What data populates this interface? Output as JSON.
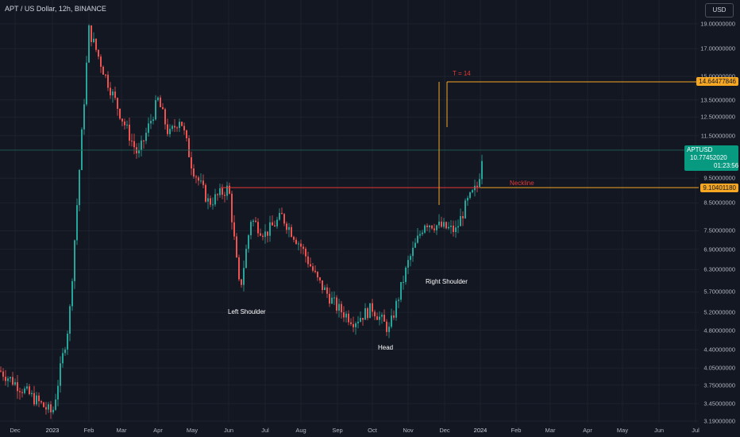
{
  "header": {
    "title": "APT / US Dollar, 12h, BINANCE",
    "currency": "USD"
  },
  "colors": {
    "background": "#131722",
    "up": "#26a69a",
    "down": "#ef5350",
    "orange": "#f5a623",
    "red": "#e53935",
    "teal": "#089981"
  },
  "y_axis": {
    "ticks": [
      "19.00000000",
      "17.00000000",
      "15.00000000",
      "13.50000000",
      "12.50000000",
      "11.50000000",
      "9.50000000",
      "8.50000000",
      "7.50000000",
      "6.90000000",
      "6.30000000",
      "5.70000000",
      "5.20000000",
      "4.80000000",
      "4.40000000",
      "4.05000000",
      "3.75000000",
      "3.45000000",
      "3.19000000"
    ],
    "scale": "log"
  },
  "x_axis": {
    "ticks": [
      "Dec",
      "2023",
      "Feb",
      "Mar",
      "Apr",
      "May",
      "Jun",
      "Jul",
      "Aug",
      "Sep",
      "Oct",
      "Nov",
      "Dec",
      "2024",
      "Feb",
      "Mar",
      "Apr",
      "May",
      "Jun",
      "Jul"
    ]
  },
  "price_badges": {
    "target": "14.64477846",
    "neckline": "9.10401180",
    "symbol": "APTUSD",
    "last": "10.77452020",
    "countdown": "01:23:56"
  },
  "annotations": {
    "target_label": "T = 14",
    "neckline": "Neckline",
    "left_shoulder": "Left Shoulder",
    "head": "Head",
    "right_shoulder": "Right Shoulder"
  },
  "chart_data": {
    "type": "candlestick",
    "y_scale": "log",
    "ylim": [
      3.19,
      19.0
    ],
    "path": [
      [
        "Dec",
        4.0
      ],
      [
        "2023",
        3.3
      ],
      [
        "2023",
        5.0
      ],
      [
        "Feb",
        18.5
      ],
      [
        "Feb",
        15.0
      ],
      [
        "Mar",
        12.5
      ],
      [
        "Mar",
        10.5
      ],
      [
        "Apr",
        13.5
      ],
      [
        "Apr",
        11.5
      ],
      [
        "Apr",
        12.5
      ],
      [
        "May",
        10.0
      ],
      [
        "May",
        8.5
      ],
      [
        "Jun",
        9.1
      ],
      [
        "Jun",
        5.7
      ],
      [
        "Jun",
        7.9
      ],
      [
        "Jul",
        7.4
      ],
      [
        "Jul",
        8.0
      ],
      [
        "Aug",
        7.0
      ],
      [
        "Aug",
        6.0
      ],
      [
        "Sep",
        5.3
      ],
      [
        "Sep",
        5.0
      ],
      [
        "Oct",
        5.3
      ],
      [
        "Oct",
        4.8
      ],
      [
        "Nov",
        6.5
      ],
      [
        "Nov",
        7.8
      ],
      [
        "Dec",
        7.5
      ],
      [
        "Dec",
        8.5
      ],
      [
        "Dec",
        9.2
      ],
      [
        "2024",
        10.77
      ]
    ],
    "lines": {
      "neckline": 9.1040118,
      "target": 14.64477846,
      "last_price": 10.7745202
    }
  }
}
